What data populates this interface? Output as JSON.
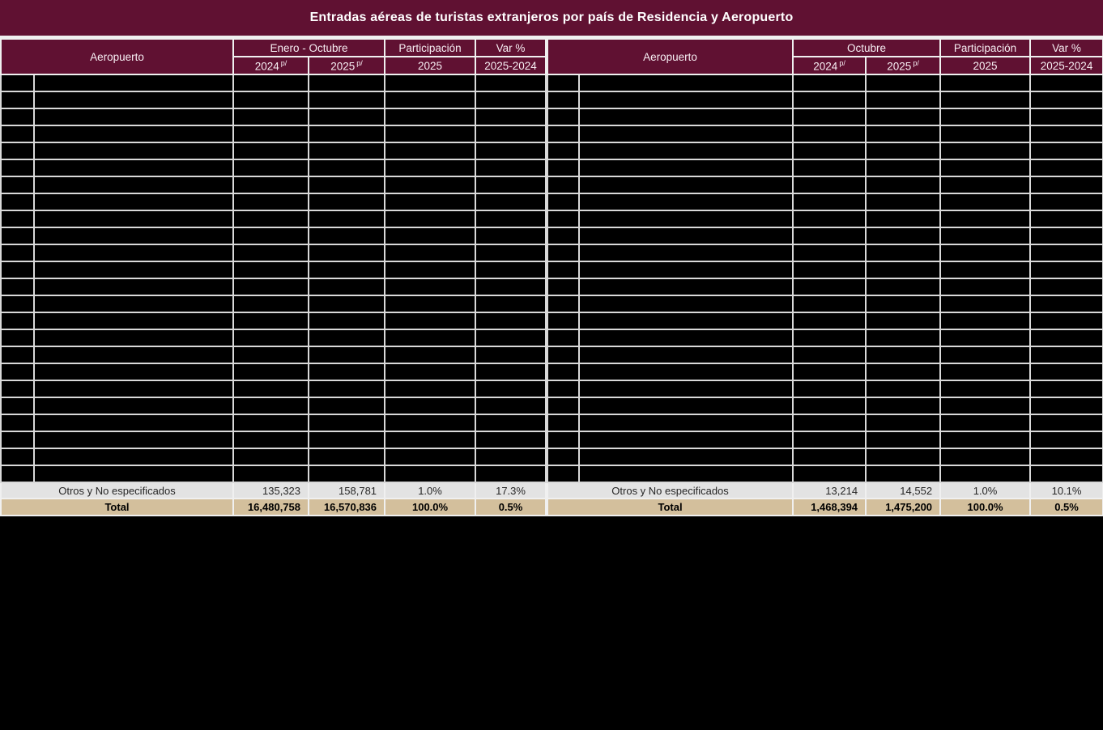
{
  "title": "Entradas aéreas de turistas extranjeros por país de Residencia y Aeropuerto",
  "colors": {
    "header_maroon": "#601132",
    "total_row_tan": "#d3bf9c",
    "otros_row_gray": "#e3e3e3",
    "gridline_gray": "#d9d9d9",
    "redacted_black": "#000000"
  },
  "tables": {
    "left": {
      "header": {
        "airport_label": "Aeropuerto",
        "period_label": "Enero - Octubre",
        "year_2024": "2024",
        "year_2025": "2025",
        "prelim_superscript": "p/",
        "participation_label": "Participación",
        "participation_year": "2025",
        "var_label": "Var %",
        "var_years": "2025-2024"
      },
      "redacted_row_count": 24,
      "otros_row": {
        "label": "Otros y No especificados",
        "value_2024": "135,323",
        "value_2025": "158,781",
        "participation": "1.0%",
        "var_pct": "17.3%"
      },
      "total_row": {
        "label": "Total",
        "value_2024": "16,480,758",
        "value_2025": "16,570,836",
        "participation": "100.0%",
        "var_pct": "0.5%"
      }
    },
    "right": {
      "header": {
        "airport_label": "Aeropuerto",
        "period_label": "Octubre",
        "year_2024": "2024",
        "year_2025": "2025",
        "prelim_superscript": "p/",
        "participation_label": "Participación",
        "participation_year": "2025",
        "var_label": "Var %",
        "var_years": "2025-2024"
      },
      "redacted_row_count": 24,
      "otros_row": {
        "label": "Otros y No especificados",
        "value_2024": "13,214",
        "value_2025": "14,552",
        "participation": "1.0%",
        "var_pct": "10.1%"
      },
      "total_row": {
        "label": "Total",
        "value_2024": "1,468,394",
        "value_2025": "1,475,200",
        "participation": "100.0%",
        "var_pct": "0.5%"
      }
    }
  }
}
